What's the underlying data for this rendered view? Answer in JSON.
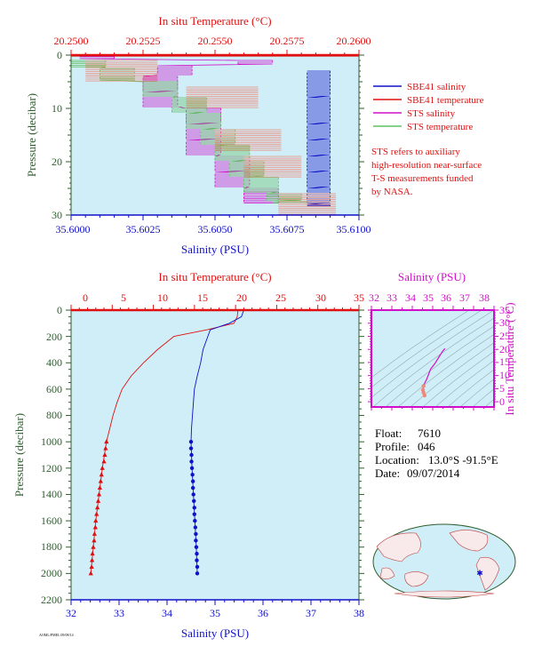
{
  "colors": {
    "background": "#cfeef8",
    "red": "#e01010",
    "blue": "#1010c8",
    "magenta": "#d010c8",
    "salmon": "#f08878",
    "green": "#60c060",
    "dark_green": "#2e5e2e",
    "temp_axis": "#e01010",
    "sal_axis": "#1010c8",
    "pressure_axis": "#2e5e2e"
  },
  "top_panel": {
    "top_axis_title": "In situ Temperature (°C)",
    "top_ticks": [
      "20.2500",
      "20.2525",
      "20.2550",
      "20.2575",
      "20.2600"
    ],
    "bottom_axis_title": "Salinity (PSU)",
    "bottom_ticks": [
      "35.6000",
      "35.6025",
      "35.6050",
      "35.6075",
      "35.6100"
    ],
    "left_axis_title": "Pressure (decibar)",
    "left_ticks": [
      "0",
      "10",
      "20",
      "30"
    ],
    "legend": [
      {
        "label": "SBE41 salinity",
        "color": "#1010c8"
      },
      {
        "label": "SBE41 temperature",
        "color": "#e01010"
      },
      {
        "label": "STS salinity",
        "color": "#d010c8"
      },
      {
        "label": "STS temperature",
        "color": "#60c060"
      }
    ],
    "note_lines": [
      "STS refers to auxiliary",
      "high-resolution near-surface",
      "T-S measurements funded",
      "by NASA."
    ]
  },
  "main_panel": {
    "top_axis_title": "In situ Temperature (°C)",
    "top_ticks": [
      "0",
      "5",
      "10",
      "15",
      "20",
      "25",
      "30",
      "35"
    ],
    "bottom_axis_title": "Salinity (PSU)",
    "bottom_ticks": [
      "32",
      "33",
      "34",
      "35",
      "36",
      "37",
      "38"
    ],
    "left_axis_title": "Pressure (decibar)",
    "left_ticks": [
      "0",
      "200",
      "400",
      "600",
      "800",
      "1000",
      "1200",
      "1400",
      "1600",
      "1800",
      "2000",
      "2200"
    ]
  },
  "ts_panel": {
    "top_axis_title": "Salinity (PSU)",
    "top_ticks": [
      "32",
      "33",
      "34",
      "35",
      "36",
      "37",
      "38"
    ],
    "right_axis_title": "In situ Temperature (°C)",
    "right_ticks": [
      "0",
      "5",
      "10",
      "15",
      "20",
      "25",
      "30",
      "35"
    ]
  },
  "info": {
    "float_label": "Float:",
    "float_value": "7610",
    "profile_label": "Profile:",
    "profile_value": "046",
    "location_label": "Location:",
    "location_value": "13.0°S  -91.5°E",
    "date_label": "Date:",
    "date_value": "09/07/2014"
  },
  "footer_small": "AOML/PMEL 09/08/14",
  "chart_data": [
    {
      "type": "line",
      "name": "near-surface detail",
      "xlabel": "Salinity (PSU)",
      "x_top_label": "In situ Temperature (°C)",
      "ylabel": "Pressure (decibar)",
      "xlim_salinity": [
        35.6,
        35.61
      ],
      "xlim_temperature": [
        20.25,
        20.26
      ],
      "ylim": [
        30,
        0
      ],
      "series": [
        {
          "name": "SBE41 salinity",
          "axis": "salinity",
          "pressure": [
            3,
            5,
            8,
            10,
            13,
            16,
            19,
            22,
            25,
            28
          ],
          "values": [
            35.6082,
            35.6082,
            35.6082,
            35.6082,
            35.6082,
            35.6082,
            35.6082,
            35.6082,
            35.6082,
            35.6082
          ]
        },
        {
          "name": "SBE41 temperature",
          "axis": "temperature",
          "pressure": [
            0,
            0.3
          ],
          "values": [
            20.26,
            20.26
          ]
        },
        {
          "name": "STS salinity",
          "axis": "salinity",
          "pressure": [
            0.3,
            1,
            2,
            4,
            7,
            10,
            13,
            16,
            19,
            22,
            25,
            27.5
          ],
          "values": [
            35.6003,
            35.6058,
            35.603,
            35.6025,
            35.6025,
            35.604,
            35.604,
            35.604,
            35.605,
            35.605,
            35.606,
            35.606
          ]
        },
        {
          "name": "STS temperature",
          "axis": "temperature",
          "pressure": [
            1,
            2.5,
            5,
            8,
            11,
            14,
            17,
            20,
            23,
            26,
            27.5
          ],
          "values": [
            20.25,
            20.251,
            20.2525,
            20.2535,
            20.254,
            20.2545,
            20.255,
            20.2555,
            20.256,
            20.2568,
            20.257
          ]
        }
      ]
    },
    {
      "type": "line",
      "name": "full profile",
      "xlabel": "Salinity (PSU)",
      "x_top_label": "In situ Temperature (°C)",
      "ylabel": "Pressure (decibar)",
      "xlim_salinity": [
        32,
        38
      ],
      "xlim_temperature": [
        0,
        35
      ],
      "ylim": [
        2200,
        0
      ],
      "series": [
        {
          "name": "temperature",
          "axis": "temperature",
          "pressure": [
            0,
            50,
            100,
            150,
            200,
            300,
            400,
            500,
            600,
            700,
            800,
            900,
            1000,
            1200,
            1400,
            1600,
            1800,
            2000
          ],
          "values": [
            20.3,
            20.2,
            19.8,
            16.5,
            12.5,
            10.5,
            8.8,
            7.3,
            6.2,
            5.6,
            5.1,
            4.7,
            4.3,
            3.8,
            3.4,
            3.0,
            2.7,
            2.4
          ]
        },
        {
          "name": "salinity",
          "axis": "salinity",
          "pressure": [
            0,
            50,
            100,
            150,
            200,
            300,
            400,
            500,
            600,
            700,
            800,
            900,
            1000,
            1200,
            1400,
            1600,
            1800,
            2000
          ],
          "values": [
            35.6,
            35.55,
            35.3,
            34.9,
            34.85,
            34.75,
            34.7,
            34.63,
            34.57,
            34.55,
            34.53,
            34.51,
            34.5,
            34.52,
            34.55,
            34.58,
            34.61,
            34.63
          ]
        },
        {
          "name": "temperature markers",
          "axis": "temperature",
          "pressure": [
            1000,
            1050,
            1100,
            1150,
            1200,
            1250,
            1300,
            1350,
            1400,
            1450,
            1500,
            1550,
            1600,
            1650,
            1700,
            1750,
            1800,
            1850,
            1900,
            1950,
            2000
          ],
          "values": [
            4.3,
            4.2,
            4.1,
            4.0,
            3.8,
            3.7,
            3.6,
            3.5,
            3.4,
            3.3,
            3.2,
            3.1,
            3.0,
            2.95,
            2.85,
            2.8,
            2.7,
            2.6,
            2.55,
            2.5,
            2.4
          ]
        },
        {
          "name": "salinity markers",
          "axis": "salinity",
          "pressure": [
            1000,
            1050,
            1100,
            1150,
            1200,
            1250,
            1300,
            1350,
            1400,
            1450,
            1500,
            1550,
            1600,
            1650,
            1700,
            1750,
            1800,
            1850,
            1900,
            1950,
            2000
          ],
          "values": [
            34.5,
            34.5,
            34.51,
            34.51,
            34.52,
            34.53,
            34.54,
            34.54,
            34.55,
            34.56,
            34.57,
            34.57,
            34.58,
            34.59,
            34.6,
            34.6,
            34.61,
            34.62,
            34.62,
            34.63,
            34.63
          ]
        }
      ]
    },
    {
      "type": "scatter",
      "name": "T-S diagram",
      "xlabel": "Salinity (PSU)",
      "ylabel": "In situ Temperature (°C)",
      "xlim": [
        32,
        38
      ],
      "ylim": [
        -2,
        35
      ],
      "points": {
        "salinity": [
          35.6,
          35.5,
          35.3,
          35.1,
          34.9,
          34.8,
          34.7,
          34.6,
          34.55,
          34.52,
          34.55,
          34.6
        ],
        "temperature": [
          20.3,
          19.5,
          17,
          14.5,
          12.5,
          10.5,
          8.5,
          7,
          6,
          4.5,
          3.5,
          2.4
        ]
      }
    }
  ]
}
